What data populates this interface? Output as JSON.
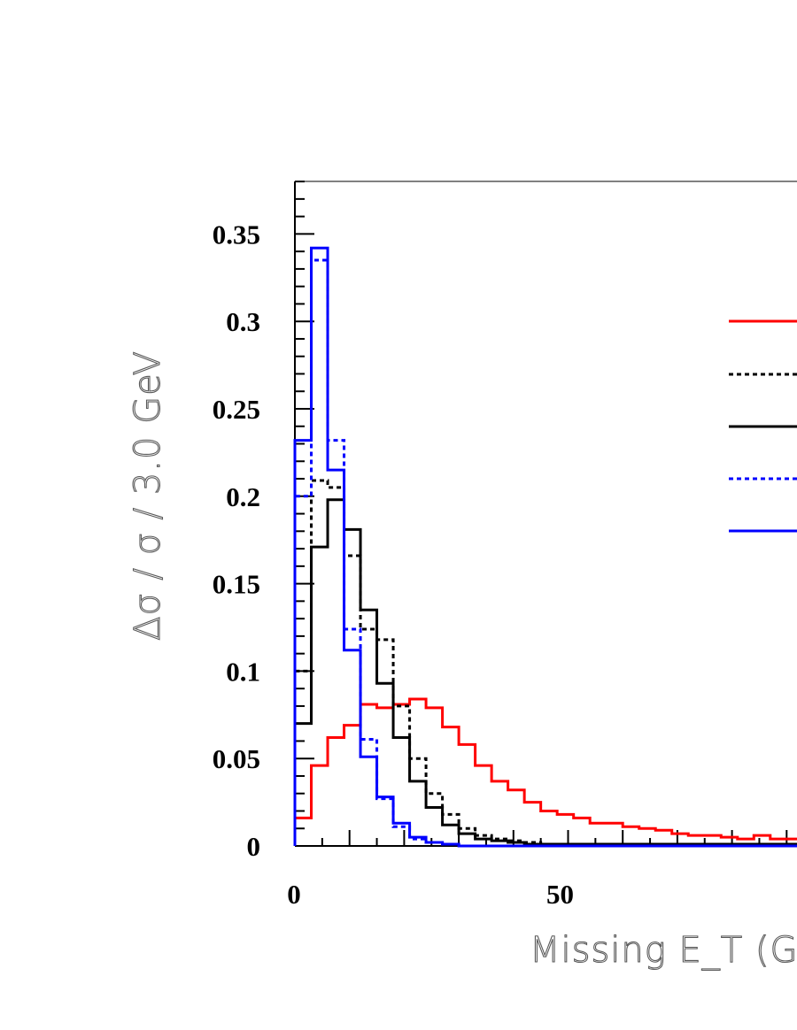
{
  "chart_data": {
    "type": "line",
    "style": "step-histogram",
    "xlabel": "Missing E_T (G",
    "ylabel": "Δσ / σ / 3.0 GeV",
    "xlim": [
      0,
      93
    ],
    "ylim": [
      0,
      0.38
    ],
    "x_ticks": [
      0,
      50
    ],
    "y_ticks": [
      0,
      0.05,
      0.1,
      0.15,
      0.2,
      0.25,
      0.3,
      0.35
    ],
    "y_tick_labels": [
      "0",
      "0.05",
      "0.1",
      "0.15",
      "0.2",
      "0.25",
      "0.3",
      "0.35"
    ],
    "x_tick_labels": [
      "0",
      "50"
    ],
    "bin_width": 1.5,
    "legend_placement": "top-right",
    "series": [
      {
        "color": "#ff0000",
        "dash": "solid",
        "bin_edges": [
          0,
          1.5,
          3,
          4.5,
          6,
          7.5,
          9,
          10.5,
          12,
          13.5,
          15,
          16.5,
          18,
          19.5,
          21,
          22.5,
          24,
          25.5,
          27,
          28.5,
          30,
          31.5,
          33,
          34.5,
          36,
          37.5,
          39,
          40.5,
          42,
          43.5,
          45,
          46.5,
          48,
          49.5,
          51,
          52.5,
          54,
          55.5,
          57,
          58.5,
          60,
          61.5,
          63,
          64.5,
          66,
          67.5,
          69,
          70.5,
          72,
          73.5,
          75,
          76.5,
          78,
          79.5,
          81,
          82.5,
          84,
          85.5,
          87,
          88.5,
          90,
          91.5,
          93
        ],
        "values": [
          0.016,
          0.016,
          0.046,
          0.046,
          0.062,
          0.062,
          0.069,
          0.069,
          0.081,
          0.081,
          0.079,
          0.079,
          0.081,
          0.081,
          0.084,
          0.084,
          0.079,
          0.079,
          0.068,
          0.068,
          0.058,
          0.058,
          0.046,
          0.046,
          0.037,
          0.037,
          0.032,
          0.032,
          0.025,
          0.025,
          0.02,
          0.02,
          0.018,
          0.018,
          0.016,
          0.016,
          0.013,
          0.013,
          0.013,
          0.013,
          0.011,
          0.011,
          0.01,
          0.01,
          0.009,
          0.009,
          0.007,
          0.007,
          0.006,
          0.006,
          0.006,
          0.006,
          0.005,
          0.005,
          0.004,
          0.004,
          0.006,
          0.006,
          0.004,
          0.004,
          0.004,
          0.004
        ]
      },
      {
        "color": "#000000",
        "dash": "dotted",
        "bin_edges": [
          0,
          1.5,
          3,
          4.5,
          6,
          7.5,
          9,
          10.5,
          12,
          13.5,
          15,
          16.5,
          18,
          19.5,
          21,
          22.5,
          24,
          25.5,
          27,
          28.5,
          30,
          31.5,
          33,
          34.5,
          36,
          37.5,
          39,
          40.5,
          42,
          43.5,
          45,
          46.5,
          48,
          49.5,
          51,
          52.5,
          54,
          55.5,
          57,
          58.5,
          60,
          61.5,
          63,
          64.5,
          66,
          67.5,
          69,
          70.5,
          72,
          73.5,
          75,
          76.5,
          78,
          79.5,
          81,
          82.5,
          84,
          85.5,
          87,
          88.5,
          90,
          91.5,
          93
        ],
        "values": [
          0.1,
          0.1,
          0.209,
          0.209,
          0.205,
          0.205,
          0.166,
          0.166,
          0.124,
          0.124,
          0.118,
          0.118,
          0.08,
          0.08,
          0.05,
          0.05,
          0.03,
          0.03,
          0.018,
          0.018,
          0.01,
          0.01,
          0.006,
          0.006,
          0.004,
          0.004,
          0.003,
          0.003,
          0.002,
          0.002,
          0.001,
          0.001,
          0.001,
          0.001,
          0.001,
          0.001,
          0.001,
          0.001,
          0.001,
          0.001,
          0.001,
          0.001,
          0.001,
          0.001,
          0.001,
          0.001,
          0.001,
          0.001,
          0.001,
          0.001,
          0.001,
          0.001,
          0.001,
          0.001,
          0.001,
          0.001,
          0.001,
          0.001,
          0.001,
          0.001,
          0.001,
          0.001
        ]
      },
      {
        "color": "#000000",
        "dash": "solid",
        "bin_edges": [
          0,
          1.5,
          3,
          4.5,
          6,
          7.5,
          9,
          10.5,
          12,
          13.5,
          15,
          16.5,
          18,
          19.5,
          21,
          22.5,
          24,
          25.5,
          27,
          28.5,
          30,
          31.5,
          33,
          34.5,
          36,
          37.5,
          39,
          40.5,
          42,
          43.5,
          45,
          46.5,
          48,
          49.5,
          51,
          52.5,
          54,
          55.5,
          57,
          58.5,
          60,
          61.5,
          63,
          64.5,
          66,
          67.5,
          69,
          70.5,
          72,
          73.5,
          75,
          76.5,
          78,
          79.5,
          81,
          82.5,
          84,
          85.5,
          87,
          88.5,
          90,
          91.5,
          93
        ],
        "values": [
          0.07,
          0.07,
          0.171,
          0.171,
          0.198,
          0.198,
          0.181,
          0.181,
          0.135,
          0.135,
          0.093,
          0.093,
          0.062,
          0.062,
          0.037,
          0.037,
          0.022,
          0.022,
          0.012,
          0.012,
          0.007,
          0.007,
          0.004,
          0.004,
          0.003,
          0.003,
          0.002,
          0.002,
          0.001,
          0.001,
          0.001,
          0.001,
          0.001,
          0.001,
          0.001,
          0.001,
          0.001,
          0.001,
          0.001,
          0.001,
          0.001,
          0.001,
          0.001,
          0.001,
          0.001,
          0.001,
          0.001,
          0.001,
          0.001,
          0.001,
          0.001,
          0.001,
          0.001,
          0.001,
          0.001,
          0.001,
          0.001,
          0.001,
          0.001,
          0.001,
          0.001,
          0.001
        ]
      },
      {
        "color": "#0000ff",
        "dash": "dotted",
        "bin_edges": [
          0,
          1.5,
          3,
          4.5,
          6,
          7.5,
          9,
          10.5,
          12,
          13.5,
          15,
          16.5,
          18,
          19.5,
          21,
          22.5,
          24,
          25.5,
          27,
          28.5,
          30,
          31.5,
          33,
          34.5,
          36,
          37.5,
          39,
          40.5,
          42,
          43.5,
          45,
          46.5,
          48,
          49.5,
          51,
          52.5,
          54,
          55.5,
          57,
          58.5,
          60,
          61.5,
          63,
          64.5,
          66,
          67.5,
          69,
          70.5,
          72,
          73.5,
          75,
          76.5,
          78,
          79.5,
          81,
          82.5,
          84,
          85.5,
          87,
          88.5,
          90,
          91.5,
          93
        ],
        "values": [
          0.2,
          0.2,
          0.335,
          0.335,
          0.232,
          0.232,
          0.124,
          0.124,
          0.061,
          0.061,
          0.027,
          0.027,
          0.011,
          0.011,
          0.004,
          0.004,
          0.002,
          0.002,
          0.001,
          0.001,
          0,
          0,
          0,
          0,
          0,
          0,
          0,
          0,
          0,
          0,
          0,
          0,
          0,
          0,
          0,
          0,
          0,
          0,
          0,
          0,
          0,
          0,
          0,
          0,
          0,
          0,
          0,
          0,
          0,
          0,
          0,
          0,
          0,
          0,
          0,
          0,
          0,
          0,
          0,
          0,
          0,
          0
        ]
      },
      {
        "color": "#0000ff",
        "dash": "solid",
        "bin_edges": [
          0,
          1.5,
          3,
          4.5,
          6,
          7.5,
          9,
          10.5,
          12,
          13.5,
          15,
          16.5,
          18,
          19.5,
          21,
          22.5,
          24,
          25.5,
          27,
          28.5,
          30,
          31.5,
          33,
          34.5,
          36,
          37.5,
          39,
          40.5,
          42,
          43.5,
          45,
          46.5,
          48,
          49.5,
          51,
          52.5,
          54,
          55.5,
          57,
          58.5,
          60,
          61.5,
          63,
          64.5,
          66,
          67.5,
          69,
          70.5,
          72,
          73.5,
          75,
          76.5,
          78,
          79.5,
          81,
          82.5,
          84,
          85.5,
          87,
          88.5,
          90,
          91.5,
          93
        ],
        "values": [
          0.232,
          0.232,
          0.342,
          0.342,
          0.215,
          0.215,
          0.112,
          0.112,
          0.051,
          0.051,
          0.028,
          0.028,
          0.013,
          0.013,
          0.005,
          0.005,
          0.002,
          0.002,
          0.001,
          0.001,
          0,
          0,
          0,
          0,
          0,
          0,
          0,
          0,
          0,
          0,
          0,
          0,
          0,
          0,
          0,
          0,
          0,
          0,
          0,
          0,
          0,
          0,
          0,
          0,
          0,
          0,
          0,
          0,
          0,
          0,
          0,
          0,
          0,
          0,
          0,
          0,
          0,
          0,
          0,
          0,
          0,
          0
        ]
      }
    ]
  }
}
